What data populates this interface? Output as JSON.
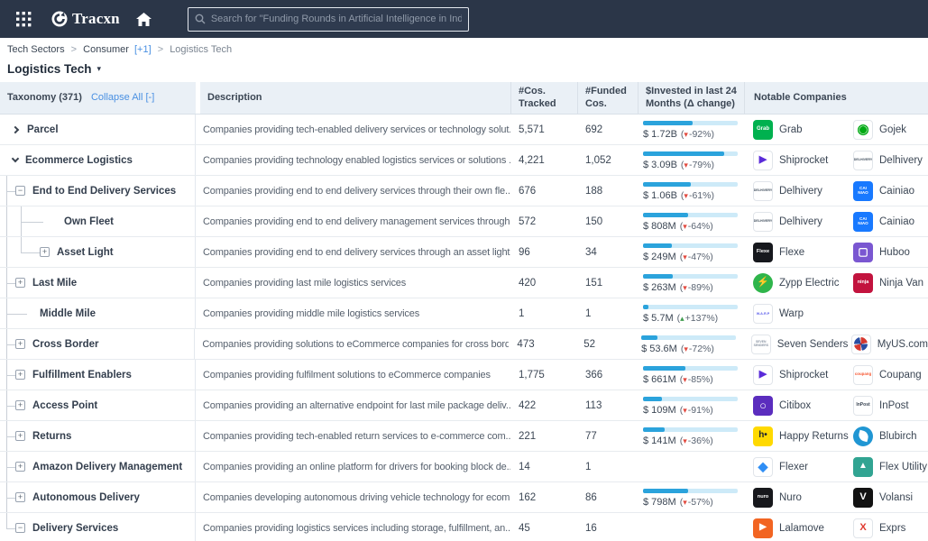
{
  "topbar": {
    "brand": "Tracxn",
    "search_placeholder": "Search for \"Funding Rounds in Artificial Intelligence in India\""
  },
  "breadcrumb": {
    "root": "Tech Sectors",
    "sep": ">",
    "parent": "Consumer",
    "parent_extra": "[+1]",
    "current": "Logistics Tech"
  },
  "page": {
    "title": "Logistics Tech",
    "caret": "▾"
  },
  "table": {
    "taxonomy_header": "Taxonomy (371)",
    "collapse_all": "Collapse All [-]",
    "col_description": "Description",
    "col_cos_tracked": "#Cos. Tracked",
    "col_funded": "#Funded Cos.",
    "col_invested": "$Invested in last 24 Months (Δ change)",
    "col_notable": "Notable Companies",
    "rows": [
      {
        "label": "Parcel",
        "level": 0,
        "expander": "chevron-right",
        "guides": [],
        "description": "Companies providing tech-enabled delivery services or technology solut...",
        "cos_tracked": "5,571",
        "funded_cos": "692",
        "invested": "$ 1.72B",
        "change": "-92%",
        "trend": "down",
        "bar_pct": 52,
        "companies": [
          {
            "name": "Grab",
            "logo": {
              "bg": "#00b14f",
              "color": "#ffffff",
              "lines": [
                "Grab"
              ],
              "fs": 6
            }
          },
          {
            "name": "Gojek",
            "logo": {
              "bg": "#ffffff",
              "border": true,
              "color": "#00aa13",
              "lines": [
                "◉"
              ],
              "fs": 15
            }
          }
        ]
      },
      {
        "label": "Ecommerce Logistics",
        "level": 0,
        "expander": "chevron-down",
        "guides": [],
        "description": "Companies providing technology enabled logistics services or solutions ...",
        "cos_tracked": "4,221",
        "funded_cos": "1,052",
        "invested": "$ 3.09B",
        "change": "-79%",
        "trend": "down",
        "bar_pct": 86,
        "companies": [
          {
            "name": "Shiprocket",
            "logo": {
              "bg": "#ffffff",
              "border": true,
              "color": "#5a2bd9",
              "lines": [
                "▶"
              ],
              "fs": 11
            }
          },
          {
            "name": "Delhivery",
            "logo": {
              "bg": "#ffffff",
              "border": true,
              "color": "#42505f",
              "lines": [
                "DELHIVERY"
              ],
              "fs": 3.6
            }
          }
        ]
      },
      {
        "label": "End to End Delivery Services",
        "level": 1,
        "expander": "minus",
        "guides": [
          "l1-mid"
        ],
        "description": "Companies providing end to end delivery services through their own fle...",
        "cos_tracked": "676",
        "funded_cos": "188",
        "invested": "$ 1.06B",
        "change": "-61%",
        "trend": "down",
        "bar_pct": 50,
        "companies": [
          {
            "name": "Delhivery",
            "logo": {
              "bg": "#ffffff",
              "border": true,
              "color": "#42505f",
              "lines": [
                "DELHIVERY"
              ],
              "fs": 3.6
            }
          },
          {
            "name": "Cainiao",
            "logo": {
              "bg": "#1879ff",
              "color": "#ffffff",
              "lines": [
                "CAI",
                "NIAO"
              ],
              "fs": 4.6
            }
          }
        ]
      },
      {
        "label": "Own Fleet",
        "level": 2,
        "expander": "leaf",
        "guides": [
          "l1-pass",
          "l2-mid-leaf"
        ],
        "description": "Companies providing end to end delivery management services through...",
        "cos_tracked": "572",
        "funded_cos": "150",
        "invested": "$ 808M",
        "change": "-64%",
        "trend": "down",
        "bar_pct": 48,
        "companies": [
          {
            "name": "Delhivery",
            "logo": {
              "bg": "#ffffff",
              "border": true,
              "color": "#42505f",
              "lines": [
                "DELHIVERY"
              ],
              "fs": 3.6
            }
          },
          {
            "name": "Cainiao",
            "logo": {
              "bg": "#1879ff",
              "color": "#ffffff",
              "lines": [
                "CAI",
                "NIAO"
              ],
              "fs": 4.6
            }
          }
        ]
      },
      {
        "label": "Asset Light",
        "level": 2,
        "expander": "plus",
        "guides": [
          "l1-pass",
          "l2-end"
        ],
        "description": "Companies providing end to end delivery services through an asset light ...",
        "cos_tracked": "96",
        "funded_cos": "34",
        "invested": "$ 249M",
        "change": "-47%",
        "trend": "down",
        "bar_pct": 30,
        "companies": [
          {
            "name": "Flexe",
            "logo": {
              "bg": "#16181d",
              "color": "#ffffff",
              "lines": [
                "Flexe"
              ],
              "fs": 5.6
            }
          },
          {
            "name": "Huboo",
            "logo": {
              "bg": "#7a57d1",
              "color": "#ffffff",
              "lines": [
                "▢"
              ],
              "fs": 12
            }
          }
        ]
      },
      {
        "label": "Last Mile",
        "level": 1,
        "expander": "plus",
        "guides": [
          "l1-mid"
        ],
        "description": "Companies providing last mile logistics services",
        "cos_tracked": "420",
        "funded_cos": "151",
        "invested": "$ 263M",
        "change": "-89%",
        "trend": "down",
        "bar_pct": 31,
        "companies": [
          {
            "name": "Zypp Electric",
            "logo": {
              "bg": "#2fb54b",
              "circle": true,
              "color": "#ffffff",
              "lines": [
                "⚡"
              ],
              "fs": 11
            }
          },
          {
            "name": "Ninja Van",
            "logo": {
              "bg": "#c2133e",
              "color": "#ffffff",
              "lines": [
                "ninja"
              ],
              "fs": 5.4
            }
          }
        ]
      },
      {
        "label": "Middle Mile",
        "level": 1,
        "expander": "leaf",
        "guides": [
          "l1-mid-leaf"
        ],
        "description": "Companies providing middle mile logistics services",
        "cos_tracked": "1",
        "funded_cos": "1",
        "invested": "$ 5.7M",
        "change": "+137%",
        "trend": "up",
        "bar_pct": 6,
        "companies": [
          {
            "name": "Warp",
            "logo": {
              "bg": "#ffffff",
              "border": true,
              "color": "#5d60ec",
              "lines": [
                "W.A.R.P"
              ],
              "fs": 3.8
            }
          }
        ]
      },
      {
        "label": "Cross Border",
        "level": 1,
        "expander": "plus",
        "guides": [
          "l1-mid"
        ],
        "description": "Companies providing solutions to eCommerce companies for cross bord...",
        "cos_tracked": "473",
        "funded_cos": "52",
        "invested": "$ 53.6M",
        "change": "-72%",
        "trend": "down",
        "bar_pct": 17,
        "companies": [
          {
            "name": "Seven Senders",
            "logo": {
              "bg": "#ffffff",
              "border": true,
              "color": "#8d97a5",
              "lines": [
                "SEVEN",
                "SENDERS"
              ],
              "fs": 3.4
            }
          },
          {
            "name": "MyUS.com",
            "logo": {
              "bg": "#ffffff",
              "border": true,
              "pinwheel": true
            }
          }
        ]
      },
      {
        "label": "Fulfillment Enablers",
        "level": 1,
        "expander": "plus",
        "guides": [
          "l1-mid"
        ],
        "description": "Companies providing fulfilment solutions to eCommerce companies",
        "cos_tracked": "1,775",
        "funded_cos": "366",
        "invested": "$ 661M",
        "change": "-85%",
        "trend": "down",
        "bar_pct": 45,
        "companies": [
          {
            "name": "Shiprocket",
            "logo": {
              "bg": "#ffffff",
              "border": true,
              "color": "#5a2bd9",
              "lines": [
                "▶"
              ],
              "fs": 11
            }
          },
          {
            "name": "Coupang",
            "logo": {
              "bg": "#ffffff",
              "border": true,
              "color": "#f7552f",
              "lines": [
                "coupang"
              ],
              "fs": 4.4
            }
          }
        ]
      },
      {
        "label": "Access Point",
        "level": 1,
        "expander": "plus",
        "guides": [
          "l1-mid"
        ],
        "description": "Companies providing an alternative endpoint for last mile package deliv...",
        "cos_tracked": "422",
        "funded_cos": "113",
        "invested": "$ 109M",
        "change": "-91%",
        "trend": "down",
        "bar_pct": 20,
        "companies": [
          {
            "name": "Citibox",
            "logo": {
              "bg": "#5b2dbe",
              "color": "#ffffff",
              "lines": [
                "○"
              ],
              "fs": 13,
              "weight": 700
            }
          },
          {
            "name": "InPost",
            "logo": {
              "bg": "#ffffff",
              "border": true,
              "color": "#3b4654",
              "lines": [
                "InPost"
              ],
              "fs": 5
            }
          }
        ]
      },
      {
        "label": "Returns",
        "level": 1,
        "expander": "plus",
        "guides": [
          "l1-mid"
        ],
        "description": "Companies providing tech-enabled return services to e-commerce com...",
        "cos_tracked": "221",
        "funded_cos": "77",
        "invested": "$ 141M",
        "change": "-36%",
        "trend": "down",
        "bar_pct": 23,
        "companies": [
          {
            "name": "Happy Returns",
            "logo": {
              "bg": "#ffd900",
              "color": "#1e2430",
              "lines": [
                "h•"
              ],
              "fs": 10,
              "weight": 700
            }
          },
          {
            "name": "Blubirch",
            "logo": {
              "bg": "#2096d3",
              "circle": true,
              "leaf": true
            }
          }
        ]
      },
      {
        "label": "Amazon Delivery Management",
        "level": 1,
        "expander": "plus",
        "guides": [
          "l1-mid"
        ],
        "description": "Companies providing an online platform for drivers for booking block de...",
        "cos_tracked": "14",
        "funded_cos": "1",
        "invested": "",
        "change": "",
        "trend": "",
        "bar_pct": 0,
        "companies": [
          {
            "name": "Flexer",
            "logo": {
              "bg": "#ffffff",
              "border": true,
              "color": "#2f8ef5",
              "lines": [
                "◆"
              ],
              "fs": 14
            }
          },
          {
            "name": "Flex Utility",
            "logo": {
              "bg": "#31a492",
              "color": "#ffffff",
              "lines": [
                "▲"
              ],
              "fs": 10
            }
          }
        ]
      },
      {
        "label": "Autonomous Delivery",
        "level": 1,
        "expander": "plus",
        "guides": [
          "l1-mid"
        ],
        "description": "Companies developing autonomous driving vehicle technology for ecom...",
        "cos_tracked": "162",
        "funded_cos": "86",
        "invested": "$ 798M",
        "change": "-57%",
        "trend": "down",
        "bar_pct": 48,
        "companies": [
          {
            "name": "Nuro",
            "logo": {
              "bg": "#17181c",
              "color": "#ffffff",
              "lines": [
                "nuro"
              ],
              "fs": 5.6
            }
          },
          {
            "name": "Volansi",
            "logo": {
              "bg": "#121212",
              "color": "#ffffff",
              "lines": [
                "V"
              ],
              "fs": 11,
              "weight": 700
            }
          }
        ]
      },
      {
        "label": "Delivery Services",
        "level": 1,
        "expander": "minus",
        "guides": [
          "l1-end"
        ],
        "description": "Companies providing logistics services including storage, fulfillment, an...",
        "cos_tracked": "45",
        "funded_cos": "16",
        "invested": "",
        "change": "",
        "trend": "",
        "bar_pct": 0,
        "companies": [
          {
            "name": "Lalamove",
            "logo": {
              "bg": "#f26522",
              "color": "#ffffff",
              "lines": [
                "▶"
              ],
              "fs": 10
            }
          },
          {
            "name": "Exprs",
            "logo": {
              "bg": "#ffffff",
              "border": true,
              "color": "#e0392f",
              "lines": [
                "X"
              ],
              "fs": 11,
              "weight": 700
            }
          }
        ]
      }
    ]
  }
}
